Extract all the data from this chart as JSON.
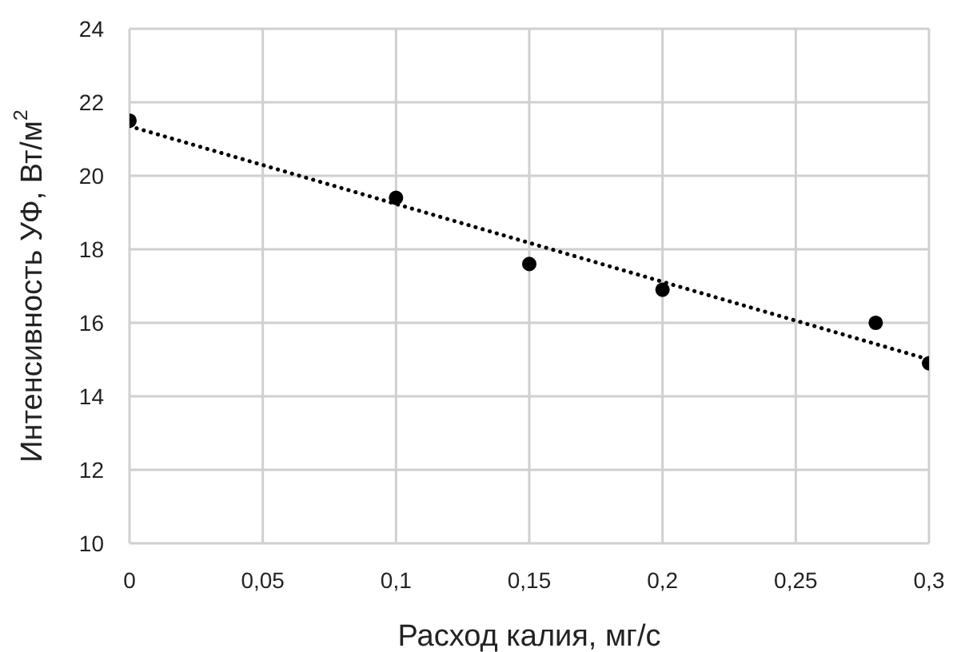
{
  "chart_data": {
    "type": "scatter",
    "xlabel": "Расход калия, мг/с",
    "ylabel": "Интенсивность УФ, Вт/м$^{2}$",
    "xlim": [
      0,
      0.3
    ],
    "ylim": [
      10,
      24
    ],
    "xticks": [
      0,
      {
        "value": 0.05,
        "label": "0,05"
      },
      {
        "value": 0.1,
        "label": "0,1"
      },
      {
        "value": 0.15,
        "label": "0,15"
      },
      {
        "value": 0.2,
        "label": "0,2"
      },
      {
        "value": 0.25,
        "label": "0,25"
      },
      {
        "value": 0.3,
        "label": "0,3"
      }
    ],
    "yticks": [
      10,
      12,
      14,
      16,
      18,
      20,
      22,
      24
    ],
    "grid": true,
    "marker": "circle",
    "series": [
      {
        "color": "#000000",
        "x": [
          0,
          0.1,
          0.15,
          0.2,
          0.28,
          0.3
        ],
        "values": [
          21.5,
          19.4,
          17.6,
          16.9,
          16.0,
          14.9
        ]
      },
      {
        "type": "line",
        "color": "#000000",
        "line_style": "dotted",
        "marker": "none",
        "x": [
          0,
          0.3
        ],
        "values": [
          21.35,
          15.0
        ]
      }
    ]
  }
}
